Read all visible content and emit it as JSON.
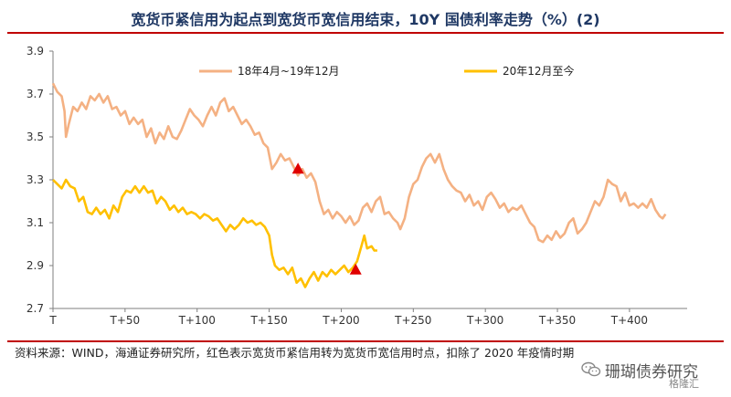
{
  "title": "宽货币紧信用为起点到宽货币宽信用结束，10Y 国债利率走势（%）(2)",
  "source_note": "资料来源：WIND，海通证券研究所，红色表示宽货币紧信用转为宽货币宽信用时点，扣除了 2020 年疫情时期",
  "watermark": {
    "text": "珊瑚债券研究",
    "badge": "格隆汇"
  },
  "colors": {
    "series1": "#f4b183",
    "series2": "#ffc000",
    "marker": "#e00000",
    "axis": "#7f7f7f",
    "title": "#1f3864",
    "rule": "#c00000"
  },
  "chart_data": {
    "type": "line",
    "xlabel": "",
    "ylabel": "",
    "ylim": [
      2.7,
      3.9
    ],
    "yticks": [
      "3.9",
      "3.7",
      "3.5",
      "3.3",
      "3.1",
      "2.9",
      "2.7"
    ],
    "xlim": [
      0,
      440
    ],
    "xticks": [
      {
        "v": 0,
        "label": "T"
      },
      {
        "v": 50,
        "label": "T+50"
      },
      {
        "v": 100,
        "label": "T+100"
      },
      {
        "v": 150,
        "label": "T+150"
      },
      {
        "v": 200,
        "label": "T+200"
      },
      {
        "v": 250,
        "label": "T+250"
      },
      {
        "v": 300,
        "label": "T+300"
      },
      {
        "v": 350,
        "label": "T+350"
      },
      {
        "v": 400,
        "label": "T+400"
      }
    ],
    "grid": false,
    "legend_position": "top",
    "series": [
      {
        "name": "18年4月~19年12月",
        "points": [
          [
            0,
            3.75
          ],
          [
            3,
            3.71
          ],
          [
            6,
            3.69
          ],
          [
            8,
            3.62
          ],
          [
            9,
            3.5
          ],
          [
            11,
            3.56
          ],
          [
            14,
            3.64
          ],
          [
            17,
            3.62
          ],
          [
            20,
            3.66
          ],
          [
            23,
            3.63
          ],
          [
            26,
            3.69
          ],
          [
            29,
            3.67
          ],
          [
            32,
            3.7
          ],
          [
            35,
            3.66
          ],
          [
            38,
            3.69
          ],
          [
            41,
            3.63
          ],
          [
            44,
            3.64
          ],
          [
            47,
            3.6
          ],
          [
            50,
            3.62
          ],
          [
            53,
            3.56
          ],
          [
            56,
            3.59
          ],
          [
            59,
            3.56
          ],
          [
            62,
            3.58
          ],
          [
            65,
            3.5
          ],
          [
            68,
            3.54
          ],
          [
            71,
            3.47
          ],
          [
            74,
            3.52
          ],
          [
            77,
            3.49
          ],
          [
            80,
            3.55
          ],
          [
            83,
            3.5
          ],
          [
            86,
            3.49
          ],
          [
            89,
            3.53
          ],
          [
            92,
            3.58
          ],
          [
            95,
            3.63
          ],
          [
            98,
            3.6
          ],
          [
            101,
            3.58
          ],
          [
            104,
            3.55
          ],
          [
            107,
            3.6
          ],
          [
            110,
            3.64
          ],
          [
            113,
            3.6
          ],
          [
            116,
            3.66
          ],
          [
            119,
            3.68
          ],
          [
            122,
            3.62
          ],
          [
            125,
            3.64
          ],
          [
            128,
            3.6
          ],
          [
            131,
            3.56
          ],
          [
            134,
            3.58
          ],
          [
            137,
            3.55
          ],
          [
            140,
            3.51
          ],
          [
            143,
            3.52
          ],
          [
            146,
            3.47
          ],
          [
            149,
            3.45
          ],
          [
            152,
            3.35
          ],
          [
            155,
            3.38
          ],
          [
            158,
            3.42
          ],
          [
            161,
            3.39
          ],
          [
            164,
            3.4
          ],
          [
            167,
            3.36
          ],
          [
            170,
            3.32
          ],
          [
            173,
            3.35
          ],
          [
            176,
            3.31
          ],
          [
            179,
            3.33
          ],
          [
            182,
            3.29
          ],
          [
            185,
            3.2
          ],
          [
            188,
            3.14
          ],
          [
            191,
            3.16
          ],
          [
            194,
            3.12
          ],
          [
            197,
            3.15
          ],
          [
            200,
            3.13
          ],
          [
            203,
            3.1
          ],
          [
            206,
            3.13
          ],
          [
            209,
            3.09
          ],
          [
            212,
            3.11
          ],
          [
            215,
            3.17
          ],
          [
            218,
            3.19
          ],
          [
            221,
            3.15
          ],
          [
            224,
            3.2
          ],
          [
            227,
            3.22
          ],
          [
            230,
            3.14
          ],
          [
            233,
            3.15
          ],
          [
            236,
            3.12
          ],
          [
            239,
            3.1
          ],
          [
            241,
            3.07
          ],
          [
            244,
            3.12
          ],
          [
            247,
            3.22
          ],
          [
            250,
            3.28
          ],
          [
            253,
            3.3
          ],
          [
            256,
            3.36
          ],
          [
            259,
            3.4
          ],
          [
            262,
            3.42
          ],
          [
            265,
            3.38
          ],
          [
            268,
            3.42
          ],
          [
            271,
            3.35
          ],
          [
            274,
            3.3
          ],
          [
            277,
            3.27
          ],
          [
            280,
            3.25
          ],
          [
            283,
            3.24
          ],
          [
            286,
            3.2
          ],
          [
            289,
            3.23
          ],
          [
            292,
            3.18
          ],
          [
            295,
            3.2
          ],
          [
            298,
            3.16
          ],
          [
            301,
            3.22
          ],
          [
            304,
            3.24
          ],
          [
            307,
            3.21
          ],
          [
            310,
            3.17
          ],
          [
            313,
            3.19
          ],
          [
            316,
            3.15
          ],
          [
            319,
            3.17
          ],
          [
            322,
            3.16
          ],
          [
            325,
            3.18
          ],
          [
            328,
            3.14
          ],
          [
            331,
            3.1
          ],
          [
            334,
            3.08
          ],
          [
            337,
            3.02
          ],
          [
            340,
            3.01
          ],
          [
            343,
            3.04
          ],
          [
            346,
            3.02
          ],
          [
            349,
            3.06
          ],
          [
            352,
            3.03
          ],
          [
            355,
            3.05
          ],
          [
            358,
            3.1
          ],
          [
            361,
            3.12
          ],
          [
            364,
            3.05
          ],
          [
            367,
            3.07
          ],
          [
            370,
            3.1
          ],
          [
            373,
            3.15
          ],
          [
            376,
            3.2
          ],
          [
            379,
            3.18
          ],
          [
            382,
            3.22
          ],
          [
            385,
            3.3
          ],
          [
            388,
            3.28
          ],
          [
            391,
            3.27
          ],
          [
            394,
            3.2
          ],
          [
            397,
            3.24
          ],
          [
            400,
            3.18
          ],
          [
            403,
            3.19
          ],
          [
            406,
            3.17
          ],
          [
            409,
            3.19
          ],
          [
            412,
            3.17
          ],
          [
            415,
            3.21
          ],
          [
            418,
            3.16
          ],
          [
            421,
            3.13
          ],
          [
            423,
            3.12
          ],
          [
            425,
            3.14
          ]
        ]
      },
      {
        "name": "20年12月至今",
        "points": [
          [
            0,
            3.3
          ],
          [
            3,
            3.28
          ],
          [
            6,
            3.26
          ],
          [
            9,
            3.3
          ],
          [
            12,
            3.27
          ],
          [
            15,
            3.26
          ],
          [
            18,
            3.2
          ],
          [
            21,
            3.22
          ],
          [
            24,
            3.15
          ],
          [
            27,
            3.14
          ],
          [
            30,
            3.17
          ],
          [
            33,
            3.14
          ],
          [
            36,
            3.16
          ],
          [
            39,
            3.12
          ],
          [
            42,
            3.18
          ],
          [
            45,
            3.15
          ],
          [
            48,
            3.22
          ],
          [
            51,
            3.25
          ],
          [
            54,
            3.24
          ],
          [
            57,
            3.27
          ],
          [
            60,
            3.24
          ],
          [
            63,
            3.27
          ],
          [
            66,
            3.24
          ],
          [
            69,
            3.25
          ],
          [
            72,
            3.19
          ],
          [
            75,
            3.22
          ],
          [
            78,
            3.2
          ],
          [
            81,
            3.16
          ],
          [
            84,
            3.18
          ],
          [
            87,
            3.15
          ],
          [
            90,
            3.17
          ],
          [
            93,
            3.14
          ],
          [
            96,
            3.15
          ],
          [
            99,
            3.14
          ],
          [
            102,
            3.12
          ],
          [
            105,
            3.14
          ],
          [
            108,
            3.13
          ],
          [
            111,
            3.11
          ],
          [
            114,
            3.12
          ],
          [
            117,
            3.09
          ],
          [
            120,
            3.06
          ],
          [
            123,
            3.09
          ],
          [
            126,
            3.07
          ],
          [
            129,
            3.09
          ],
          [
            132,
            3.12
          ],
          [
            135,
            3.1
          ],
          [
            138,
            3.11
          ],
          [
            141,
            3.09
          ],
          [
            144,
            3.1
          ],
          [
            147,
            3.08
          ],
          [
            150,
            3.04
          ],
          [
            152,
            2.95
          ],
          [
            154,
            2.9
          ],
          [
            157,
            2.88
          ],
          [
            160,
            2.89
          ],
          [
            163,
            2.86
          ],
          [
            166,
            2.89
          ],
          [
            169,
            2.82
          ],
          [
            172,
            2.84
          ],
          [
            175,
            2.8
          ],
          [
            178,
            2.84
          ],
          [
            181,
            2.87
          ],
          [
            184,
            2.83
          ],
          [
            187,
            2.87
          ],
          [
            190,
            2.85
          ],
          [
            193,
            2.88
          ],
          [
            196,
            2.86
          ],
          [
            199,
            2.88
          ],
          [
            202,
            2.9
          ],
          [
            205,
            2.87
          ],
          [
            208,
            2.89
          ],
          [
            211,
            2.92
          ],
          [
            214,
            2.99
          ],
          [
            216,
            3.04
          ],
          [
            218,
            2.98
          ],
          [
            221,
            2.99
          ],
          [
            223,
            2.97
          ],
          [
            225,
            2.97
          ]
        ]
      }
    ],
    "markers": [
      {
        "series": "18年4月~19年12月",
        "x": 170,
        "y": 3.35
      },
      {
        "series": "20年12月至今",
        "x": 210,
        "y": 2.88
      }
    ]
  }
}
